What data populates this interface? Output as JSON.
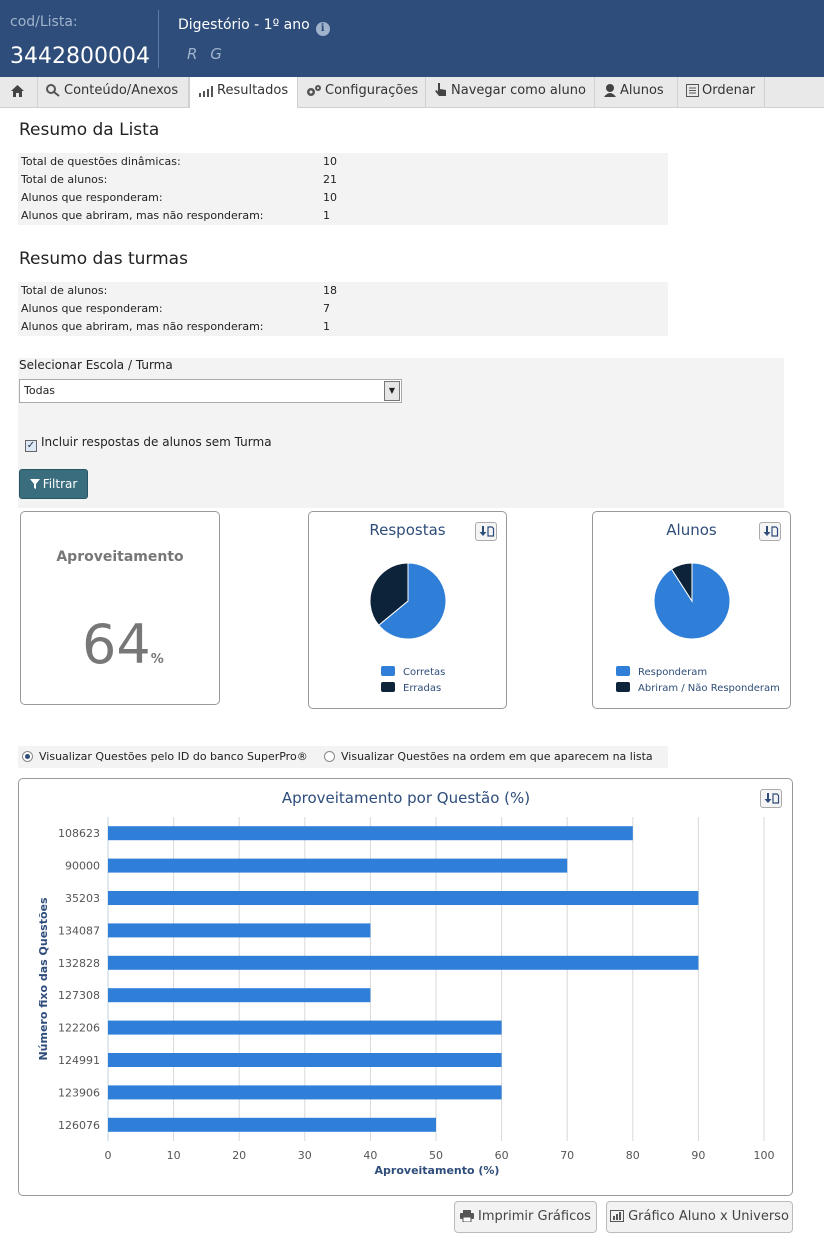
{
  "header": {
    "cod_label": "cod/Lista:",
    "cod_value": "3442800004",
    "list_title": "Digestório - 1º ano",
    "initials": "R G"
  },
  "tabs": [
    {
      "label": ""
    },
    {
      "label": "Conteúdo/Anexos"
    },
    {
      "label": "Resultados"
    },
    {
      "label": "Configurações"
    },
    {
      "label": "Navegar como aluno"
    },
    {
      "label": "Alunos"
    },
    {
      "label": "Ordenar"
    }
  ],
  "resumo_lista": {
    "title": "Resumo da Lista",
    "rows": [
      {
        "label": "Total de questões dinâmicas:",
        "value": "10"
      },
      {
        "label": "Total de alunos:",
        "value": "21"
      },
      {
        "label": "Alunos que responderam:",
        "value": "10"
      },
      {
        "label": "Alunos que abriram, mas não responderam:",
        "value": "1"
      }
    ]
  },
  "resumo_turmas": {
    "title": "Resumo das turmas",
    "rows": [
      {
        "label": "Total de alunos:",
        "value": "18"
      },
      {
        "label": "Alunos que responderam:",
        "value": "7"
      },
      {
        "label": "Alunos que abriram, mas não responderam:",
        "value": "1"
      }
    ]
  },
  "filter": {
    "label": "Selecionar Escola / Turma",
    "selected": "Todas",
    "checkbox_label": "Incluir respostas de alunos sem Turma",
    "button_label": "Filtrar"
  },
  "aproveitamento": {
    "title": "Aproveitamento",
    "value": "64",
    "unit": "%"
  },
  "respostas": {
    "title": "Respostas",
    "legend": [
      "Corretas",
      "Erradas"
    ]
  },
  "alunos": {
    "title": "Alunos",
    "legend": [
      "Responderam",
      "Abriram / Não Responderam"
    ]
  },
  "view_options": {
    "option_id": "Visualizar Questões pelo ID do banco SuperPro®",
    "option_order": "Visualizar Questões na ordem em que aparecem na lista"
  },
  "colors": {
    "header_bg": "#2e4d7a",
    "bar": "#2f7ed8",
    "dark": "#0d233a",
    "title": "#2e4d7a"
  },
  "buttons": {
    "print": "Imprimir Gráficos",
    "aluno_universo": "Gráfico Aluno x Universo"
  },
  "chart_data": [
    {
      "type": "pie",
      "title": "Respostas",
      "labels": [
        "Corretas",
        "Erradas"
      ],
      "values": [
        64,
        36
      ]
    },
    {
      "type": "pie",
      "title": "Alunos",
      "labels": [
        "Responderam",
        "Abriram / Não Responderam"
      ],
      "values": [
        10,
        1
      ]
    },
    {
      "type": "bar",
      "orientation": "horizontal",
      "title": "Aproveitamento por Questão (%)",
      "xlabel": "Aproveitamento (%)",
      "ylabel": "Número fixo das Questões",
      "categories": [
        "108623",
        "90000",
        "35203",
        "134087",
        "132828",
        "127308",
        "122206",
        "124991",
        "123906",
        "126076"
      ],
      "values": [
        80,
        70,
        90,
        40,
        90,
        40,
        60,
        60,
        60,
        50
      ],
      "xlim": [
        0,
        100
      ],
      "xticks": [
        "0",
        "10",
        "20",
        "30",
        "40",
        "50",
        "60",
        "70",
        "80",
        "90",
        "100"
      ],
      "grid": true
    }
  ]
}
